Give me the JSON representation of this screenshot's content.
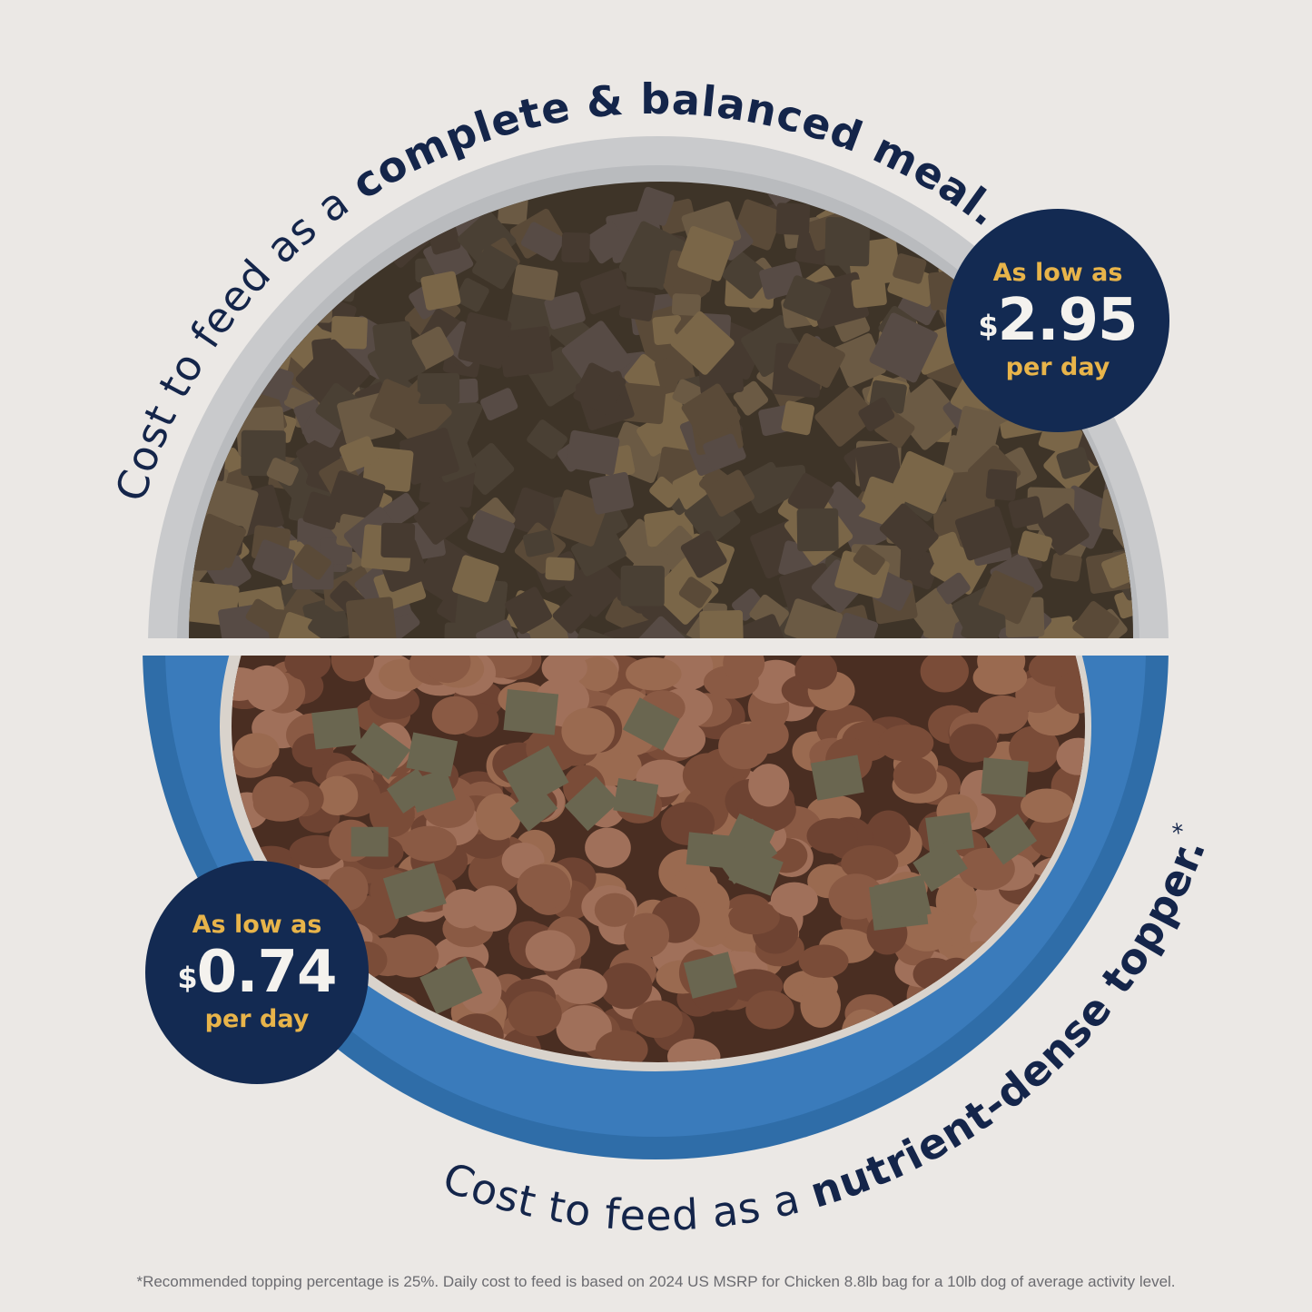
{
  "top_caption": {
    "regular": "Cost to feed as a ",
    "bold": "complete & balanced meal."
  },
  "bottom_caption": {
    "regular": "Cost to feed as a ",
    "bold": "nutrient-dense topper.",
    "mark": "*"
  },
  "badges": [
    {
      "label": "As low as",
      "currency": "$",
      "price": "2.95",
      "unit": "per day"
    },
    {
      "label": "As low as",
      "currency": "$",
      "price": "0.74",
      "unit": "per day"
    }
  ],
  "footnote": "*Recommended topping percentage is 25%. Daily cost to feed is based on 2024 US MSRP for Chicken 8.8lb bag for a 10lb dog of average activity level.",
  "colors": {
    "background": "#ebe8e5",
    "navy": "#132a52",
    "gold": "#e8b44a",
    "blue_bowl": "#2f6da8",
    "grey_bowl": "#c9cacc"
  }
}
